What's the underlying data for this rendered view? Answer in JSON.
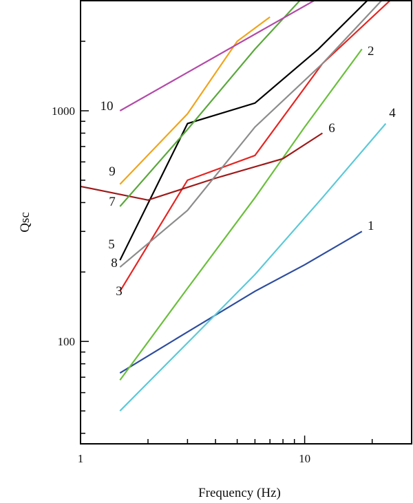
{
  "chart_data": {
    "type": "line",
    "xlabel": "Frequency (Hz)",
    "ylabel": "Qsc",
    "x_scale": "log",
    "y_scale": "log",
    "xlim": [
      1,
      30
    ],
    "ylim": [
      36,
      3000
    ],
    "x_ticks": [
      {
        "value": 1,
        "label": "1"
      },
      {
        "value": 10,
        "label": "10"
      }
    ],
    "y_ticks": [
      {
        "value": 100,
        "label": "100"
      },
      {
        "value": 1000,
        "label": "1000"
      }
    ],
    "grid": false,
    "series": [
      {
        "name": "1",
        "color": "#2e4d9e",
        "points": [
          [
            1.5,
            73
          ],
          [
            3,
            110
          ],
          [
            6,
            165
          ],
          [
            10,
            215
          ],
          [
            18,
            300
          ]
        ]
      },
      {
        "name": "2",
        "color": "#6abf3b",
        "points": [
          [
            1.5,
            68
          ],
          [
            3,
            170
          ],
          [
            6,
            420
          ],
          [
            10,
            850
          ],
          [
            18,
            1850
          ]
        ]
      },
      {
        "name": "3",
        "color": "#e52521",
        "points": [
          [
            1.5,
            165
          ],
          [
            3,
            500
          ],
          [
            6,
            640
          ],
          [
            12,
            1600
          ],
          [
            24,
            3000
          ]
        ]
      },
      {
        "name": "4",
        "color": "#5bc9d8",
        "points": [
          [
            1.5,
            50
          ],
          [
            3.2,
            105
          ],
          [
            6,
            195
          ],
          [
            12,
            420
          ],
          [
            23,
            880
          ]
        ]
      },
      {
        "name": "5",
        "color": "#000000",
        "points": [
          [
            1.5,
            225
          ],
          [
            3,
            880
          ],
          [
            6,
            1080
          ],
          [
            11.5,
            1850
          ],
          [
            19,
            3000
          ]
        ]
      },
      {
        "name": "6",
        "color": "#9e1a1a",
        "points": [
          [
            1,
            470
          ],
          [
            2,
            410
          ],
          [
            4,
            510
          ],
          [
            8,
            620
          ],
          [
            12,
            800
          ]
        ]
      },
      {
        "name": "7",
        "color": "#5aa83c",
        "points": [
          [
            1.5,
            385
          ],
          [
            3,
            830
          ],
          [
            6,
            1850
          ],
          [
            9.5,
            3000
          ]
        ]
      },
      {
        "name": "8",
        "color": "#8c8c8c",
        "points": [
          [
            1.5,
            210
          ],
          [
            3,
            370
          ],
          [
            6,
            850
          ],
          [
            12,
            1600
          ],
          [
            22,
            3000
          ]
        ]
      },
      {
        "name": "9",
        "color": "#f0a41c",
        "points": [
          [
            1.5,
            480
          ],
          [
            3,
            970
          ],
          [
            5,
            2000
          ],
          [
            7,
            2550
          ]
        ]
      },
      {
        "name": "10",
        "color": "#b34aa8",
        "points": [
          [
            1.5,
            1000
          ],
          [
            11,
            3000
          ]
        ]
      }
    ]
  }
}
